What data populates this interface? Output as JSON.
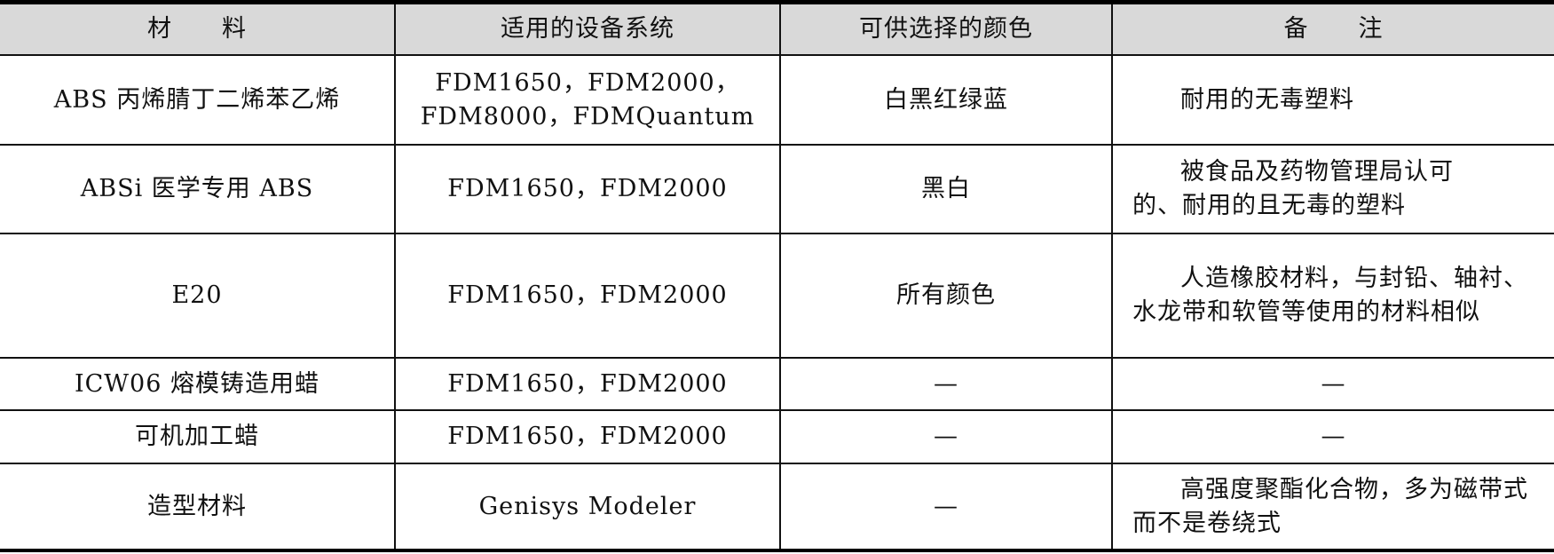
{
  "headers": [
    "材　　料",
    "适用的设备系统",
    "可供选择的颜色",
    "备　　注"
  ],
  "rows": [
    {
      "material": "ABS 丙烯腈丁二烯苯乙烯",
      "systems": "FDM1650，FDM2000，FDM8000，FDMQuantum",
      "colors": "白黑红绿蓝",
      "note": "耐用的无毒塑料"
    },
    {
      "material": "ABSi 医学专用 ABS",
      "systems": "FDM1650，FDM2000",
      "colors": "黑白",
      "note": "被食品及药物管理局认可的、耐用的且无毒的塑料"
    },
    {
      "material": "E20",
      "systems": "FDM1650，FDM2000",
      "colors": "所有颜色",
      "note": "人造橡胶材料，与封铅、轴衬、水龙带和软管等使用的材料相似"
    },
    {
      "material": "ICW06 熔模铸造用蜡",
      "systems": "FDM1650，FDM2000",
      "colors": "—",
      "note": "—"
    },
    {
      "material": "可机加工蜡",
      "systems": "FDM1650，FDM2000",
      "colors": "—",
      "note": "—"
    },
    {
      "material": "造型材料",
      "systems": "Genisys Modeler",
      "colors": "—",
      "note": "高强度聚酯化合物，多为磁带式而不是卷绕式"
    }
  ]
}
